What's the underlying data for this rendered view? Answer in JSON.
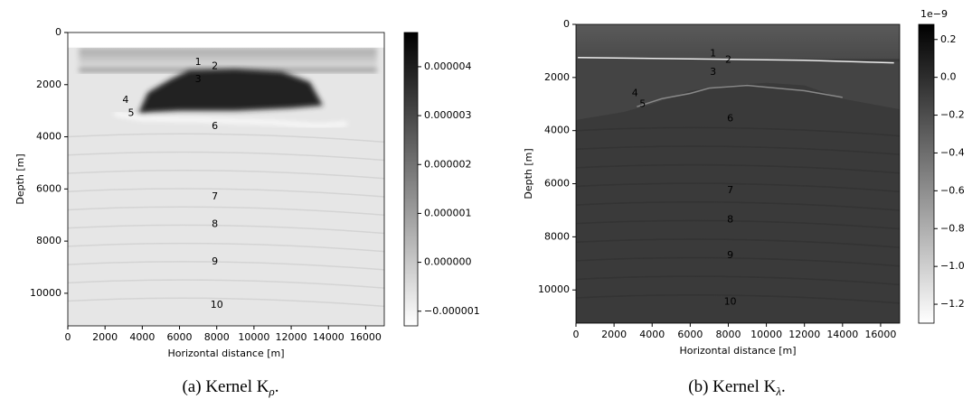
{
  "chart_data": [
    {
      "type": "heatmap",
      "xlabel": "Horizontal distance [m]",
      "ylabel": "Depth [m]",
      "xlim": [
        0,
        17000
      ],
      "xticks": [
        0,
        2000,
        4000,
        6000,
        8000,
        10000,
        12000,
        14000,
        16000
      ],
      "ylim": [
        11250,
        0
      ],
      "yticks": [
        0,
        2000,
        4000,
        6000,
        8000,
        10000
      ],
      "colormap": "gray_r",
      "clim": [
        -1.3e-06,
        4.7e-06
      ],
      "cticks": [
        {
          "value": -1e-06,
          "label": "−0.000001"
        },
        {
          "value": 0,
          "label": "0.000000"
        },
        {
          "value": 1e-06,
          "label": "0.000001"
        },
        {
          "value": 2e-06,
          "label": "0.000002"
        },
        {
          "value": 3e-06,
          "label": "0.000003"
        },
        {
          "value": 4e-06,
          "label": "0.000004"
        }
      ],
      "annotations": [
        {
          "text": "1",
          "color": "#000000"
        },
        {
          "text": "2",
          "color": "#000000"
        },
        {
          "text": "3",
          "color": "#0000ff"
        },
        {
          "text": "4",
          "color": "#000000"
        },
        {
          "text": "5",
          "color": "#000000"
        },
        {
          "text": "6",
          "color": "#ff0000"
        },
        {
          "text": "7",
          "color": "#ff0000"
        },
        {
          "text": "8",
          "color": "#000000"
        },
        {
          "text": "9",
          "color": "#0000ff"
        },
        {
          "text": "10",
          "color": "#000000"
        }
      ],
      "caption": {
        "prefix": "(a) Kernel K",
        "subscript": "ρ",
        "suffix": "."
      }
    },
    {
      "type": "heatmap",
      "xlabel": "Horizontal distance [m]",
      "ylabel": "Depth [m]",
      "xlim": [
        0,
        17000
      ],
      "xticks": [
        0,
        2000,
        4000,
        6000,
        8000,
        10000,
        12000,
        14000,
        16000
      ],
      "ylim": [
        11250,
        0
      ],
      "yticks": [
        0,
        2000,
        4000,
        6000,
        8000,
        10000
      ],
      "colormap": "gray_r",
      "clim": [
        -1.3,
        0.28
      ],
      "cscale": "1e−9",
      "cticks": [
        {
          "value": -1.2,
          "label": "−1.2"
        },
        {
          "value": -1.0,
          "label": "−1.0"
        },
        {
          "value": -0.8,
          "label": "−0.8"
        },
        {
          "value": -0.6,
          "label": "−0.6"
        },
        {
          "value": -0.4,
          "label": "−0.4"
        },
        {
          "value": -0.2,
          "label": "−0.2"
        },
        {
          "value": 0,
          "label": "0.0"
        },
        0.2
      ],
      "annotations": [
        {
          "text": "1",
          "color": "#000000"
        },
        {
          "text": "2",
          "color": "#000000"
        },
        {
          "text": "3",
          "color": "#0000ff"
        },
        {
          "text": "4",
          "color": "#000000"
        },
        {
          "text": "5",
          "color": "#000000"
        },
        {
          "text": "6",
          "color": "#0000ff"
        },
        {
          "text": "7",
          "color": "#ff0000"
        },
        {
          "text": "8",
          "color": "#000000"
        },
        {
          "text": "9",
          "color": "#0000ff"
        },
        {
          "text": "10",
          "color": "#000000"
        }
      ],
      "caption": {
        "prefix": "(b) Kernel K",
        "subscript": "λ",
        "suffix": "."
      }
    }
  ]
}
